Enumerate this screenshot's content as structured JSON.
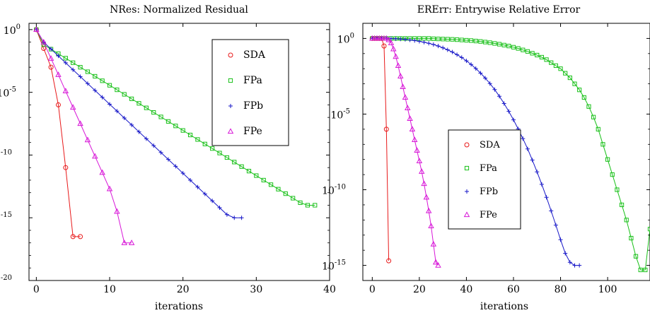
{
  "chart_data": [
    {
      "type": "line",
      "title": "NRes: Normalized Residual",
      "xlabel": "iterations",
      "ylabel": "",
      "xlim": [
        -1,
        40
      ],
      "ylim_exp": [
        -20,
        0.5
      ],
      "yscale": "log",
      "xticks": [
        "0",
        "10",
        "20",
        "30",
        "40"
      ],
      "yticks": [
        {
          "exp": 0,
          "base": "10",
          "sup": "0"
        },
        {
          "exp": -5,
          "base": "10",
          "sup": "-5"
        },
        {
          "exp": -10,
          "base": "10",
          "sup": "-10"
        },
        {
          "exp": -15,
          "base": "10",
          "sup": "-15"
        },
        {
          "exp": -20,
          "base": "10",
          "sup": "-20"
        }
      ],
      "grid": false,
      "legend": "top-right",
      "series": [
        {
          "name": "SDA",
          "color": "#e8191a",
          "marker": "circle",
          "x": [
            0,
            1,
            2,
            3,
            4,
            5,
            6
          ],
          "y_exp": [
            0,
            -1.5,
            -3,
            -6,
            -11,
            -16.5,
            -16.5
          ]
        },
        {
          "name": "FPa",
          "color": "#18c018",
          "marker": "square",
          "x": [
            0,
            1,
            2,
            3,
            4,
            5,
            6,
            7,
            8,
            9,
            10,
            11,
            12,
            13,
            14,
            15,
            16,
            17,
            18,
            19,
            20,
            21,
            22,
            23,
            24,
            25,
            26,
            27,
            28,
            29,
            30,
            31,
            32,
            33,
            34,
            35,
            36,
            37,
            38
          ],
          "y_exp": [
            0,
            -1.2,
            -1.56,
            -1.92,
            -2.28,
            -2.64,
            -3.0,
            -3.36,
            -3.72,
            -4.08,
            -4.44,
            -4.8,
            -5.16,
            -5.52,
            -5.88,
            -6.24,
            -6.6,
            -6.96,
            -7.32,
            -7.68,
            -8.04,
            -8.4,
            -8.76,
            -9.12,
            -9.48,
            -9.84,
            -10.2,
            -10.56,
            -10.92,
            -11.28,
            -11.64,
            -12.0,
            -12.36,
            -12.72,
            -13.08,
            -13.44,
            -13.8,
            -14.0,
            -14.0
          ]
        },
        {
          "name": "FPb",
          "color": "#1818c8",
          "marker": "plus",
          "x": [
            0,
            1,
            2,
            3,
            4,
            5,
            6,
            7,
            8,
            9,
            10,
            11,
            12,
            13,
            14,
            15,
            16,
            17,
            18,
            19,
            20,
            21,
            22,
            23,
            24,
            25,
            26,
            27,
            28
          ],
          "y_exp": [
            0,
            -1.0,
            -1.55,
            -2.1,
            -2.65,
            -3.2,
            -3.75,
            -4.3,
            -4.85,
            -5.4,
            -5.95,
            -6.5,
            -7.05,
            -7.6,
            -8.15,
            -8.7,
            -9.25,
            -9.8,
            -10.35,
            -10.9,
            -11.45,
            -12.0,
            -12.55,
            -13.1,
            -13.65,
            -14.2,
            -14.75,
            -15.0,
            -15.0
          ]
        },
        {
          "name": "FPe",
          "color": "#d818d8",
          "marker": "triangle",
          "x": [
            0,
            1,
            2,
            3,
            4,
            5,
            6,
            7,
            8,
            9,
            10,
            11,
            12,
            13
          ],
          "y_exp": [
            0,
            -1.0,
            -2.3,
            -3.6,
            -4.9,
            -6.2,
            -7.5,
            -8.8,
            -10.1,
            -11.4,
            -12.7,
            -14.5,
            -17.0,
            -17.0
          ]
        }
      ]
    },
    {
      "type": "line",
      "title": "ERErr: Entrywise Relative Error",
      "xlabel": "iterations",
      "ylabel": "",
      "xlim": [
        -4,
        118
      ],
      "ylim_exp": [
        -16,
        1
      ],
      "yscale": "log",
      "xticks": [
        "0",
        "20",
        "40",
        "60",
        "80",
        "100"
      ],
      "yticks": [
        {
          "exp": 0,
          "base": "10",
          "sup": "0"
        },
        {
          "exp": -5,
          "base": "10",
          "sup": "-5"
        },
        {
          "exp": -10,
          "base": "10",
          "sup": "-10"
        },
        {
          "exp": -15,
          "base": "10",
          "sup": "-15"
        }
      ],
      "grid": false,
      "legend": "center-left",
      "series": [
        {
          "name": "SDA",
          "color": "#e8191a",
          "marker": "circle",
          "x": [
            0,
            1,
            2,
            3,
            4,
            5,
            6,
            7
          ],
          "y_exp": [
            0,
            0,
            0,
            0,
            0,
            -0.5,
            -6,
            -14.7
          ]
        },
        {
          "name": "FPa",
          "color": "#18c018",
          "marker": "square",
          "x": [
            0,
            2,
            4,
            6,
            8,
            10,
            12,
            14,
            16,
            18,
            20,
            22,
            24,
            26,
            28,
            30,
            32,
            34,
            36,
            38,
            40,
            42,
            44,
            46,
            48,
            50,
            52,
            54,
            56,
            58,
            60,
            62,
            64,
            66,
            68,
            70,
            72,
            74,
            76,
            78,
            80,
            82,
            84,
            86,
            88,
            90,
            92,
            94,
            96,
            98,
            100,
            102,
            104,
            106,
            108,
            110,
            112,
            114,
            116,
            118
          ],
          "y_exp": [
            0,
            0,
            0,
            0,
            0,
            0,
            0,
            0,
            0,
            0,
            0,
            0,
            0,
            -0.02,
            -0.03,
            -0.04,
            -0.05,
            -0.06,
            -0.08,
            -0.1,
            -0.12,
            -0.14,
            -0.17,
            -0.2,
            -0.24,
            -0.28,
            -0.33,
            -0.38,
            -0.44,
            -0.5,
            -0.58,
            -0.66,
            -0.76,
            -0.86,
            -0.98,
            -1.1,
            -1.24,
            -1.4,
            -1.6,
            -1.8,
            -2.0,
            -2.3,
            -2.6,
            -3.0,
            -3.4,
            -3.9,
            -4.5,
            -5.2,
            -6.0,
            -7.0,
            -8.0,
            -9.0,
            -10.0,
            -11.0,
            -12.0,
            -13.2,
            -14.4,
            -15.3,
            -15.3,
            -12.6
          ]
        },
        {
          "name": "FPb",
          "color": "#1818c8",
          "marker": "plus",
          "x": [
            0,
            2,
            4,
            6,
            8,
            10,
            12,
            14,
            16,
            18,
            20,
            22,
            24,
            26,
            28,
            30,
            32,
            34,
            36,
            38,
            40,
            42,
            44,
            46,
            48,
            50,
            52,
            54,
            56,
            58,
            60,
            62,
            64,
            66,
            68,
            70,
            72,
            74,
            76,
            78,
            80,
            82,
            84,
            86,
            88
          ],
          "y_exp": [
            0,
            0,
            0,
            0,
            -0.01,
            -0.02,
            -0.04,
            -0.06,
            -0.1,
            -0.14,
            -0.19,
            -0.25,
            -0.32,
            -0.4,
            -0.5,
            -0.62,
            -0.75,
            -0.9,
            -1.07,
            -1.26,
            -1.48,
            -1.72,
            -1.99,
            -2.29,
            -2.62,
            -2.98,
            -3.38,
            -3.82,
            -4.3,
            -4.82,
            -5.38,
            -5.98,
            -6.62,
            -7.3,
            -8.04,
            -8.82,
            -9.64,
            -10.5,
            -11.4,
            -12.34,
            -13.3,
            -14.2,
            -14.8,
            -15.0,
            -15.0
          ]
        },
        {
          "name": "FPe",
          "color": "#d818d8",
          "marker": "triangle",
          "x": [
            0,
            1,
            2,
            3,
            4,
            5,
            6,
            7,
            8,
            9,
            10,
            11,
            12,
            13,
            14,
            15,
            16,
            17,
            18,
            19,
            20,
            21,
            22,
            23,
            24,
            25,
            26,
            27,
            28
          ],
          "y_exp": [
            0,
            0,
            0,
            0,
            0,
            0,
            0,
            -0.1,
            -0.3,
            -0.7,
            -1.2,
            -1.8,
            -2.5,
            -3.2,
            -3.9,
            -4.6,
            -5.3,
            -6.0,
            -6.7,
            -7.4,
            -8.1,
            -8.8,
            -9.6,
            -10.5,
            -11.4,
            -12.4,
            -13.6,
            -14.8,
            -15.0
          ]
        }
      ]
    }
  ]
}
